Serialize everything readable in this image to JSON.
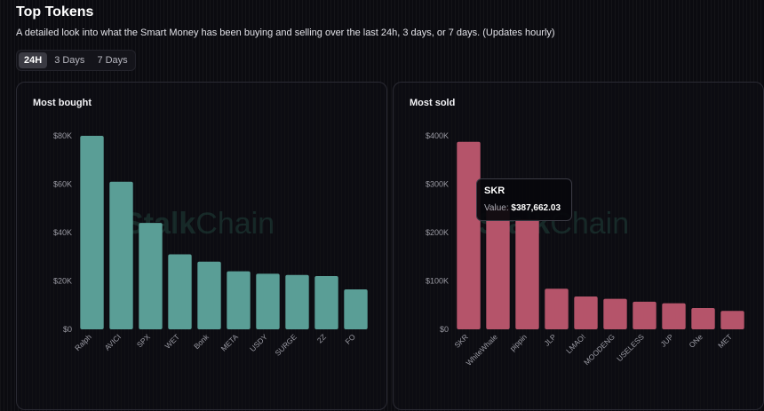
{
  "header": {
    "title": "Top Tokens",
    "subtitle": "A detailed look into what the Smart Money has been buying and selling over the last 24h, 3 days, or 7 days. (Updates hourly)"
  },
  "tabs": [
    {
      "label": "24H",
      "active": true
    },
    {
      "label": "3 Days",
      "active": false
    },
    {
      "label": "7 Days",
      "active": false
    }
  ],
  "watermark": {
    "part1": "Stalk",
    "part2": "Chain"
  },
  "tooltip": {
    "label": "SKR",
    "value_prefix": "Value: ",
    "value": "$387,662.03"
  },
  "chart_data": [
    {
      "type": "bar",
      "title": "Most bought",
      "bar_color": "#5a9e96",
      "ylim": [
        0,
        80000
      ],
      "yticks": [
        0,
        20000,
        40000,
        60000,
        80000
      ],
      "ytick_labels": [
        "$0",
        "$20K",
        "$40K",
        "$60K",
        "$80K"
      ],
      "categories": [
        "Ralph",
        "AVICI",
        "SPX",
        "WET",
        "Bonk",
        "META",
        "USDY",
        "SURGE",
        "2Z",
        "FO"
      ],
      "values": [
        80000,
        61000,
        44000,
        31000,
        28000,
        24000,
        23000,
        22500,
        22000,
        16500
      ]
    },
    {
      "type": "bar",
      "title": "Most sold",
      "bar_color": "#b5546a",
      "ylim": [
        0,
        400000
      ],
      "yticks": [
        0,
        100000,
        200000,
        300000,
        400000
      ],
      "ytick_labels": [
        "$0",
        "$100K",
        "$200K",
        "$300K",
        "$400K"
      ],
      "categories": [
        "SKR",
        "WhiteWhale",
        "pippin",
        "JLP",
        "LMAO!",
        "MOODENG",
        "USELESS",
        "JUP",
        "ONe",
        "MET"
      ],
      "values": [
        387662.03,
        252000,
        227000,
        84000,
        68000,
        63000,
        57000,
        54000,
        44000,
        38000
      ]
    }
  ]
}
